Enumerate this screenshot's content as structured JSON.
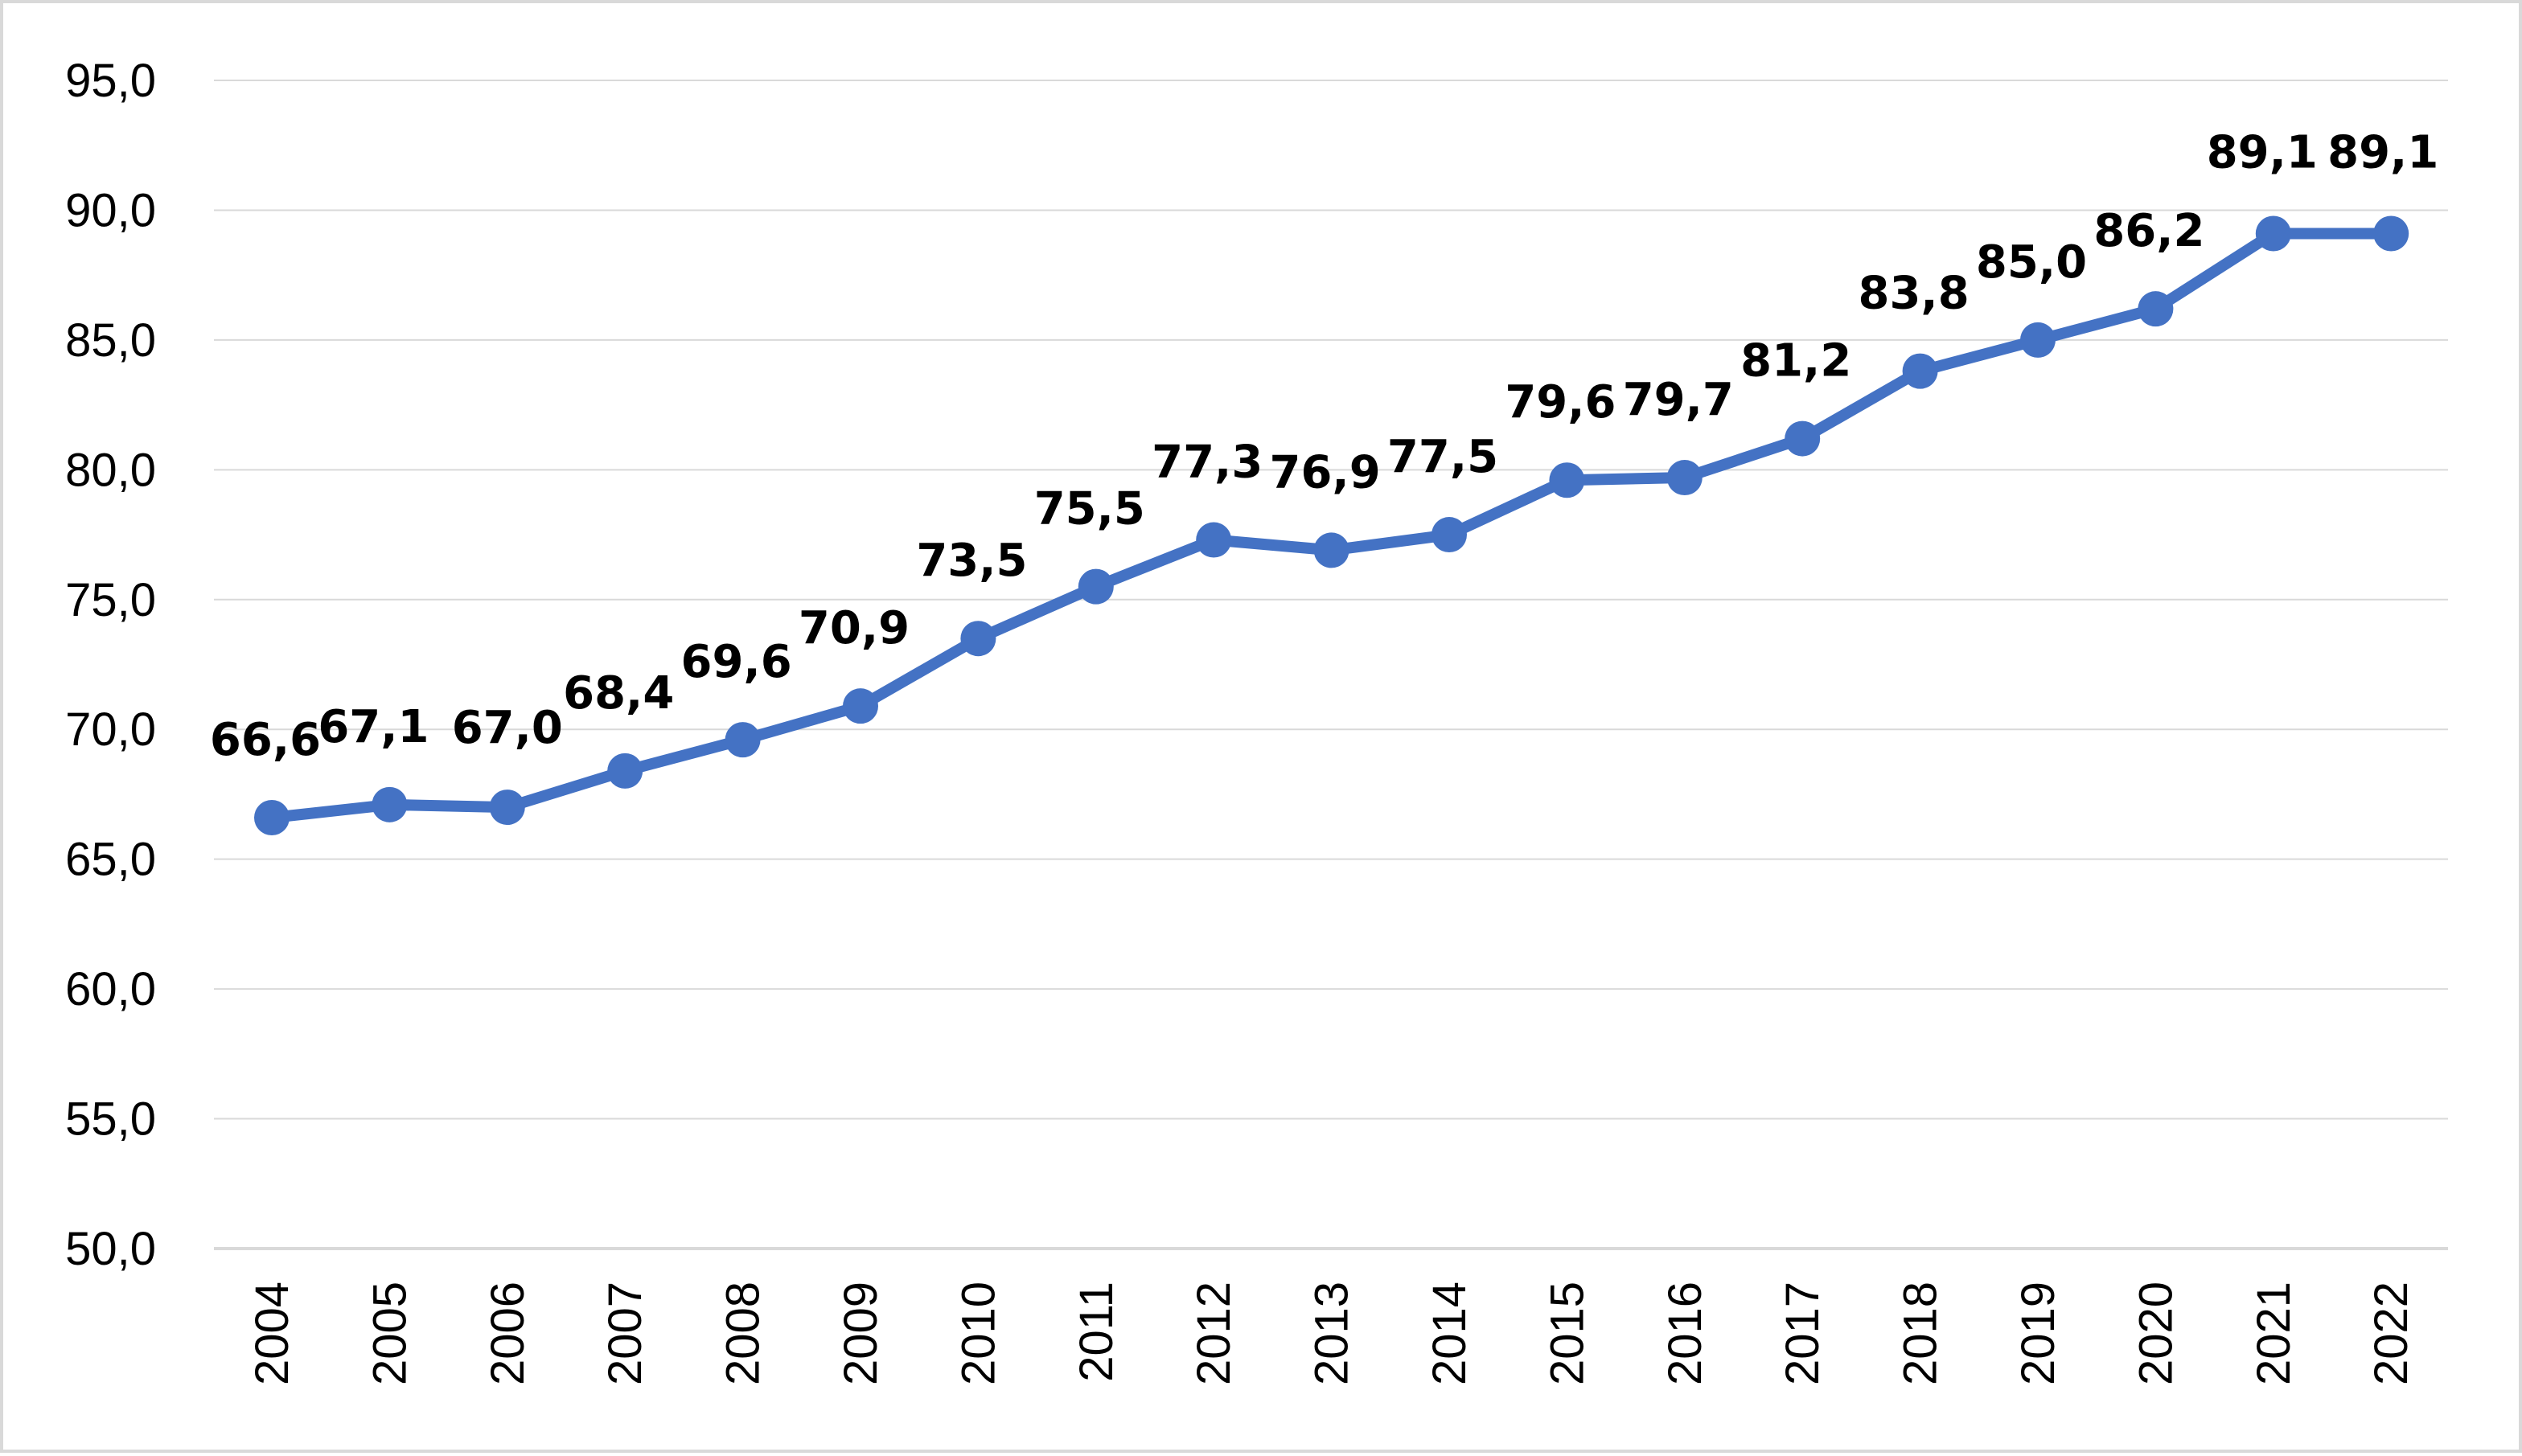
{
  "chart_data": {
    "type": "line",
    "title": "",
    "xlabel": "",
    "ylabel": "",
    "categories": [
      "2004",
      "2005",
      "2006",
      "2007",
      "2008",
      "2009",
      "2010",
      "2011",
      "2012",
      "2013",
      "2014",
      "2015",
      "2016",
      "2017",
      "2018",
      "2019",
      "2020",
      "2021",
      "2022"
    ],
    "series": [
      {
        "values": [
          66.6,
          67.1,
          67.0,
          68.4,
          69.6,
          70.9,
          73.5,
          75.5,
          77.3,
          76.9,
          77.5,
          79.6,
          79.7,
          81.2,
          83.8,
          85.0,
          86.2,
          89.1,
          89.1
        ],
        "data_labels": [
          "66,6",
          "67,1",
          "67,0",
          "68,4",
          "69,6",
          "70,9",
          "73,5",
          "75,5",
          "77,3",
          "76,9",
          "77,5",
          "79,6",
          "79,7",
          "81,2",
          "83,8",
          "85,0",
          "86,2",
          "89,1",
          "89,1"
        ],
        "color": "#4472c4"
      }
    ],
    "ylim": [
      50,
      95
    ],
    "yticks": [
      50,
      55,
      60,
      65,
      70,
      75,
      80,
      85,
      90,
      95
    ],
    "ytick_labels": [
      "50,0",
      "55,0",
      "60,0",
      "65,0",
      "70,0",
      "75,0",
      "80,0",
      "85,0",
      "90,0",
      "95,0"
    ],
    "grid": true,
    "grid_color": "#d9d9d9",
    "axis_color": "#d9d9d9",
    "legend": "none",
    "x_labels_rotated": true
  }
}
